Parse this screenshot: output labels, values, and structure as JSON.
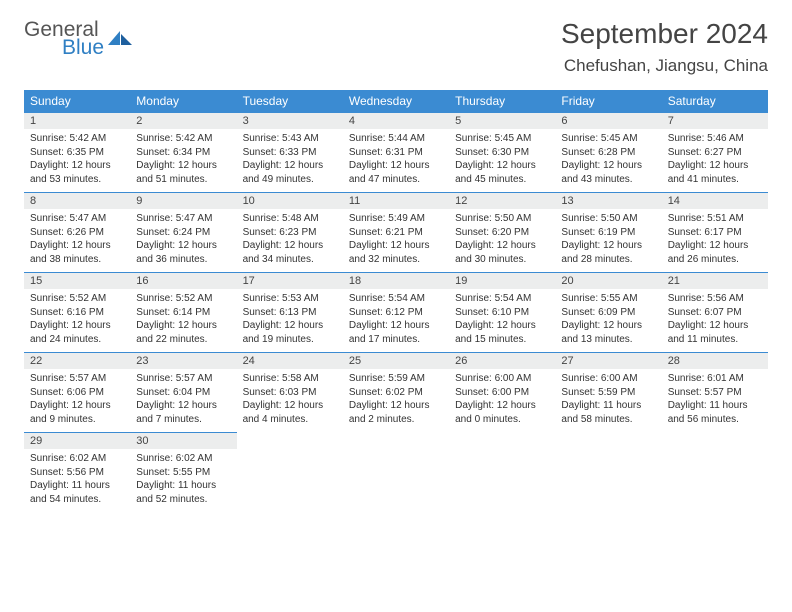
{
  "brand": {
    "line1": "General",
    "line2": "Blue",
    "color_general": "#555555",
    "color_blue": "#2f7fc3",
    "sail_color": "#2f7fc3"
  },
  "title": "September 2024",
  "location": "Chefushan, Jiangsu, China",
  "colors": {
    "header_bg": "#3b8bd2",
    "header_text": "#ffffff",
    "daynum_bg": "#eceded",
    "cell_border": "#3b8bd2",
    "body_text": "#333333",
    "background": "#ffffff"
  },
  "day_headers": [
    "Sunday",
    "Monday",
    "Tuesday",
    "Wednesday",
    "Thursday",
    "Friday",
    "Saturday"
  ],
  "weeks": [
    [
      {
        "n": "1",
        "sr": "Sunrise: 5:42 AM",
        "ss": "Sunset: 6:35 PM",
        "d1": "Daylight: 12 hours",
        "d2": "and 53 minutes."
      },
      {
        "n": "2",
        "sr": "Sunrise: 5:42 AM",
        "ss": "Sunset: 6:34 PM",
        "d1": "Daylight: 12 hours",
        "d2": "and 51 minutes."
      },
      {
        "n": "3",
        "sr": "Sunrise: 5:43 AM",
        "ss": "Sunset: 6:33 PM",
        "d1": "Daylight: 12 hours",
        "d2": "and 49 minutes."
      },
      {
        "n": "4",
        "sr": "Sunrise: 5:44 AM",
        "ss": "Sunset: 6:31 PM",
        "d1": "Daylight: 12 hours",
        "d2": "and 47 minutes."
      },
      {
        "n": "5",
        "sr": "Sunrise: 5:45 AM",
        "ss": "Sunset: 6:30 PM",
        "d1": "Daylight: 12 hours",
        "d2": "and 45 minutes."
      },
      {
        "n": "6",
        "sr": "Sunrise: 5:45 AM",
        "ss": "Sunset: 6:28 PM",
        "d1": "Daylight: 12 hours",
        "d2": "and 43 minutes."
      },
      {
        "n": "7",
        "sr": "Sunrise: 5:46 AM",
        "ss": "Sunset: 6:27 PM",
        "d1": "Daylight: 12 hours",
        "d2": "and 41 minutes."
      }
    ],
    [
      {
        "n": "8",
        "sr": "Sunrise: 5:47 AM",
        "ss": "Sunset: 6:26 PM",
        "d1": "Daylight: 12 hours",
        "d2": "and 38 minutes."
      },
      {
        "n": "9",
        "sr": "Sunrise: 5:47 AM",
        "ss": "Sunset: 6:24 PM",
        "d1": "Daylight: 12 hours",
        "d2": "and 36 minutes."
      },
      {
        "n": "10",
        "sr": "Sunrise: 5:48 AM",
        "ss": "Sunset: 6:23 PM",
        "d1": "Daylight: 12 hours",
        "d2": "and 34 minutes."
      },
      {
        "n": "11",
        "sr": "Sunrise: 5:49 AM",
        "ss": "Sunset: 6:21 PM",
        "d1": "Daylight: 12 hours",
        "d2": "and 32 minutes."
      },
      {
        "n": "12",
        "sr": "Sunrise: 5:50 AM",
        "ss": "Sunset: 6:20 PM",
        "d1": "Daylight: 12 hours",
        "d2": "and 30 minutes."
      },
      {
        "n": "13",
        "sr": "Sunrise: 5:50 AM",
        "ss": "Sunset: 6:19 PM",
        "d1": "Daylight: 12 hours",
        "d2": "and 28 minutes."
      },
      {
        "n": "14",
        "sr": "Sunrise: 5:51 AM",
        "ss": "Sunset: 6:17 PM",
        "d1": "Daylight: 12 hours",
        "d2": "and 26 minutes."
      }
    ],
    [
      {
        "n": "15",
        "sr": "Sunrise: 5:52 AM",
        "ss": "Sunset: 6:16 PM",
        "d1": "Daylight: 12 hours",
        "d2": "and 24 minutes."
      },
      {
        "n": "16",
        "sr": "Sunrise: 5:52 AM",
        "ss": "Sunset: 6:14 PM",
        "d1": "Daylight: 12 hours",
        "d2": "and 22 minutes."
      },
      {
        "n": "17",
        "sr": "Sunrise: 5:53 AM",
        "ss": "Sunset: 6:13 PM",
        "d1": "Daylight: 12 hours",
        "d2": "and 19 minutes."
      },
      {
        "n": "18",
        "sr": "Sunrise: 5:54 AM",
        "ss": "Sunset: 6:12 PM",
        "d1": "Daylight: 12 hours",
        "d2": "and 17 minutes."
      },
      {
        "n": "19",
        "sr": "Sunrise: 5:54 AM",
        "ss": "Sunset: 6:10 PM",
        "d1": "Daylight: 12 hours",
        "d2": "and 15 minutes."
      },
      {
        "n": "20",
        "sr": "Sunrise: 5:55 AM",
        "ss": "Sunset: 6:09 PM",
        "d1": "Daylight: 12 hours",
        "d2": "and 13 minutes."
      },
      {
        "n": "21",
        "sr": "Sunrise: 5:56 AM",
        "ss": "Sunset: 6:07 PM",
        "d1": "Daylight: 12 hours",
        "d2": "and 11 minutes."
      }
    ],
    [
      {
        "n": "22",
        "sr": "Sunrise: 5:57 AM",
        "ss": "Sunset: 6:06 PM",
        "d1": "Daylight: 12 hours",
        "d2": "and 9 minutes."
      },
      {
        "n": "23",
        "sr": "Sunrise: 5:57 AM",
        "ss": "Sunset: 6:04 PM",
        "d1": "Daylight: 12 hours",
        "d2": "and 7 minutes."
      },
      {
        "n": "24",
        "sr": "Sunrise: 5:58 AM",
        "ss": "Sunset: 6:03 PM",
        "d1": "Daylight: 12 hours",
        "d2": "and 4 minutes."
      },
      {
        "n": "25",
        "sr": "Sunrise: 5:59 AM",
        "ss": "Sunset: 6:02 PM",
        "d1": "Daylight: 12 hours",
        "d2": "and 2 minutes."
      },
      {
        "n": "26",
        "sr": "Sunrise: 6:00 AM",
        "ss": "Sunset: 6:00 PM",
        "d1": "Daylight: 12 hours",
        "d2": "and 0 minutes."
      },
      {
        "n": "27",
        "sr": "Sunrise: 6:00 AM",
        "ss": "Sunset: 5:59 PM",
        "d1": "Daylight: 11 hours",
        "d2": "and 58 minutes."
      },
      {
        "n": "28",
        "sr": "Sunrise: 6:01 AM",
        "ss": "Sunset: 5:57 PM",
        "d1": "Daylight: 11 hours",
        "d2": "and 56 minutes."
      }
    ],
    [
      {
        "n": "29",
        "sr": "Sunrise: 6:02 AM",
        "ss": "Sunset: 5:56 PM",
        "d1": "Daylight: 11 hours",
        "d2": "and 54 minutes."
      },
      {
        "n": "30",
        "sr": "Sunrise: 6:02 AM",
        "ss": "Sunset: 5:55 PM",
        "d1": "Daylight: 11 hours",
        "d2": "and 52 minutes."
      },
      null,
      null,
      null,
      null,
      null
    ]
  ]
}
